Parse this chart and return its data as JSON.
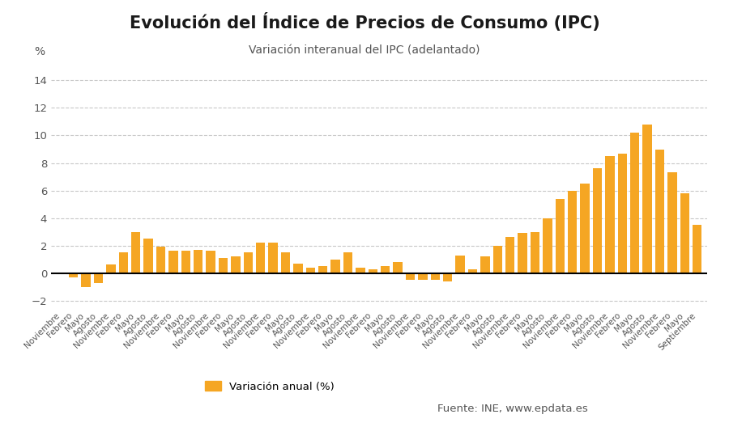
{
  "title": "Evolución del Índice de Precios de Consumo (IPC)",
  "subtitle": "Variación interanual del IPC (adelantado)",
  "ylabel": "%",
  "legend_label": "Variación anual (%)",
  "source_text": "Fuente: INE, www.epdata.es",
  "bar_color": "#F5A623",
  "background_color": "#ffffff",
  "ylim": [
    -2.5,
    15.5
  ],
  "yticks": [
    -2,
    0,
    2,
    4,
    6,
    8,
    10,
    12,
    14
  ],
  "labels": [
    "Noviembre",
    "Febrero",
    "Mayo",
    "Agosto",
    "Noviembre",
    "Febrero",
    "Mayo",
    "Agosto",
    "Noviembre",
    "Febrero",
    "Mayo",
    "Agosto",
    "Noviembre",
    "Febrero",
    "Mayo",
    "Agosto",
    "Noviembre",
    "Febrero",
    "Mayo",
    "Agosto",
    "Noviembre",
    "Febrero",
    "Mayo",
    "Agosto",
    "Noviembre",
    "Febrero",
    "Mayo",
    "Agosto",
    "Noviembre",
    "Febrero",
    "Mayo",
    "Agosto",
    "Noviembre",
    "Febrero",
    "Mayo",
    "Agosto",
    "Noviembre",
    "Febrero",
    "Mayo",
    "Agosto",
    "Noviembre",
    "Febrero",
    "Mayo",
    "Agosto",
    "Noviembre",
    "Febrero",
    "Mayo",
    "Agosto",
    "Noviembre",
    "Febrero",
    "Mayo",
    "Septiembre"
  ],
  "values": [
    -0.1,
    -0.3,
    -1.0,
    -0.7,
    0.6,
    1.5,
    3.0,
    2.5,
    1.9,
    1.6,
    1.6,
    1.7,
    1.6,
    1.1,
    1.2,
    1.5,
    2.2,
    2.2,
    1.5,
    0.7,
    0.4,
    0.5,
    1.0,
    1.5,
    0.4,
    0.3,
    0.5,
    0.8,
    -0.5,
    -0.5,
    -0.5,
    -0.6,
    1.3,
    0.3,
    1.2,
    2.0,
    2.6,
    2.9,
    3.0,
    4.0,
    5.4,
    6.0,
    6.5,
    7.6,
    8.5,
    8.7,
    10.2,
    10.8,
    9.0,
    7.3,
    5.8,
    3.5
  ]
}
